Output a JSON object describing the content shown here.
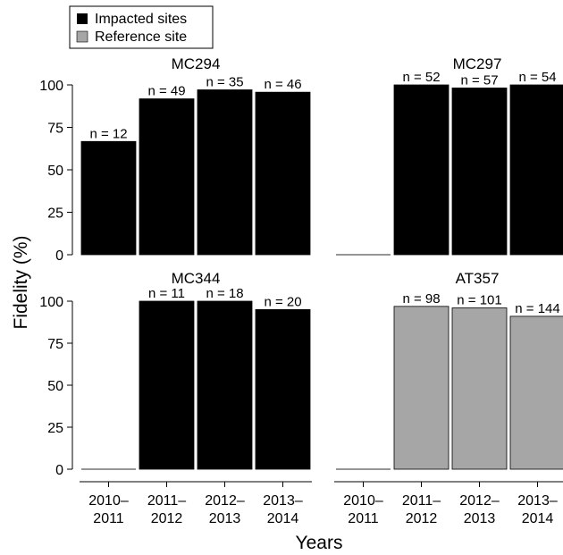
{
  "chart_data": {
    "type": "bar",
    "ylabel": "Fidelity (%)",
    "xlabel": "Years",
    "ylim": [
      0,
      100
    ],
    "yticks": [
      0,
      25,
      50,
      75,
      100
    ],
    "grid": false,
    "legend": {
      "placement": "top-left",
      "entries": [
        {
          "label": "Impacted sites",
          "color": "#000000"
        },
        {
          "label": "Reference site",
          "color": "#a6a6a6"
        }
      ]
    },
    "categories": [
      {
        "line1": "2010–",
        "line2": "2011"
      },
      {
        "line1": "2011–",
        "line2": "2012"
      },
      {
        "line1": "2012–",
        "line2": "2013"
      },
      {
        "line1": "2013–",
        "line2": "2014"
      }
    ],
    "panels": [
      {
        "title": "MC294",
        "group": "Impacted sites",
        "color": "#000000",
        "values": [
          66.7,
          91.8,
          97.1,
          95.7
        ],
        "labels": [
          "n = 12",
          "n = 49",
          "n = 35",
          "n = 46"
        ]
      },
      {
        "title": "MC297",
        "group": "Impacted sites",
        "color": "#000000",
        "values": [
          null,
          100,
          98.2,
          100
        ],
        "labels": [
          "",
          "n = 52",
          "n = 57",
          "n = 54"
        ]
      },
      {
        "title": "MC344",
        "group": "Impacted sites",
        "color": "#000000",
        "values": [
          null,
          100,
          100,
          95
        ],
        "labels": [
          "",
          "n = 11",
          "n = 18",
          "n = 20"
        ]
      },
      {
        "title": "AT357",
        "group": "Reference site",
        "color": "#a6a6a6",
        "values": [
          null,
          96.9,
          96,
          91
        ],
        "labels": [
          "",
          "n = 98",
          "n = 101",
          "n = 144"
        ]
      }
    ]
  }
}
